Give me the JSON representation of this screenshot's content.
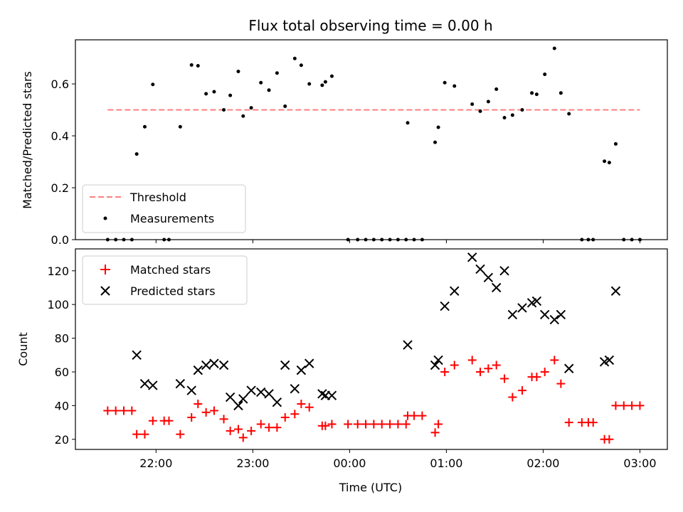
{
  "chart_data": [
    {
      "type": "scatter",
      "title": "Flux total observing time = 0.00 h",
      "xlabel": "",
      "ylabel": "Matched/Predicted stars",
      "ylim": [
        0,
        0.77
      ],
      "yticks": [
        "0.0",
        "0.2",
        "0.4",
        "0.6"
      ],
      "threshold": {
        "name": "Threshold",
        "value": 0.5,
        "x_start": "21:30",
        "x_end": "03:00",
        "color": "#ff7f7f"
      },
      "legend": {
        "placement": "lower-left",
        "entries": [
          "Threshold",
          "Measurements"
        ]
      },
      "series": [
        {
          "name": "Measurements",
          "marker": "dot",
          "color": "#000000",
          "points": [
            [
              "21:30",
              0
            ],
            [
              "21:35",
              0
            ],
            [
              "21:40",
              0
            ],
            [
              "21:45",
              0
            ],
            [
              "21:48",
              0.33
            ],
            [
              "21:53",
              0.435
            ],
            [
              "21:58",
              0.598
            ],
            [
              "22:05",
              0
            ],
            [
              "22:08",
              0
            ],
            [
              "22:15",
              0.435
            ],
            [
              "22:22",
              0.673
            ],
            [
              "22:26",
              0.67
            ],
            [
              "22:31",
              0.562
            ],
            [
              "22:36",
              0.57
            ],
            [
              "22:42",
              0.5
            ],
            [
              "22:46",
              0.556
            ],
            [
              "22:51",
              0.648
            ],
            [
              "22:54",
              0.476
            ],
            [
              "22:59",
              0.508
            ],
            [
              "23:05",
              0.605
            ],
            [
              "23:10",
              0.576
            ],
            [
              "23:15",
              0.642
            ],
            [
              "23:20",
              0.514
            ],
            [
              "23:26",
              0.698
            ],
            [
              "23:30",
              0.672
            ],
            [
              "23:35",
              0.6
            ],
            [
              "23:43",
              0.595
            ],
            [
              "23:45",
              0.608
            ],
            [
              "23:49",
              0.63
            ],
            [
              "23:59",
              0
            ],
            [
              "24:05",
              0
            ],
            [
              "24:10",
              0
            ],
            [
              "24:15",
              0
            ],
            [
              "24:20",
              0
            ],
            [
              "24:25",
              0
            ],
            [
              "24:30",
              0
            ],
            [
              "24:35",
              0
            ],
            [
              "24:36",
              0.45
            ],
            [
              "24:40",
              0
            ],
            [
              "24:45",
              0
            ],
            [
              "24:53",
              0.375
            ],
            [
              "24:55",
              0.433
            ],
            [
              "24:59",
              0.605
            ],
            [
              "25:05",
              0.592
            ],
            [
              "25:16",
              0.522
            ],
            [
              "25:21",
              0.495
            ],
            [
              "25:26",
              0.532
            ],
            [
              "25:31",
              0.58
            ],
            [
              "25:36",
              0.47
            ],
            [
              "25:41",
              0.48
            ],
            [
              "25:47",
              0.5
            ],
            [
              "25:53",
              0.565
            ],
            [
              "25:56",
              0.56
            ],
            [
              "26:01",
              0.637
            ],
            [
              "26:07",
              0.737
            ],
            [
              "26:11",
              0.565
            ],
            [
              "26:16",
              0.485
            ],
            [
              "26:24",
              0
            ],
            [
              "26:28",
              0
            ],
            [
              "26:31",
              0
            ],
            [
              "26:38",
              0.302
            ],
            [
              "26:41",
              0.297
            ],
            [
              "26:45",
              0.369
            ],
            [
              "26:50",
              0
            ],
            [
              "26:55",
              0
            ],
            [
              "27:00",
              0
            ]
          ]
        }
      ]
    },
    {
      "type": "scatter",
      "title": "",
      "xlabel": "Time (UTC)",
      "ylabel": "Count",
      "ylim": [
        14,
        133
      ],
      "yticks": [
        "20",
        "40",
        "60",
        "80",
        "100",
        "120"
      ],
      "xticks": [
        "22:00",
        "23:00",
        "00:00",
        "01:00",
        "02:00",
        "03:00"
      ],
      "xlim": [
        "21:10",
        "03:17"
      ],
      "legend": {
        "placement": "top-left",
        "entries": [
          "Matched stars",
          "Predicted stars"
        ]
      },
      "series": [
        {
          "name": "Matched stars",
          "marker": "plus",
          "color": "#ff0000",
          "points": [
            [
              "21:30",
              37
            ],
            [
              "21:35",
              37
            ],
            [
              "21:40",
              37
            ],
            [
              "21:45",
              37
            ],
            [
              "21:48",
              23
            ],
            [
              "21:53",
              23
            ],
            [
              "21:58",
              31
            ],
            [
              "22:05",
              31
            ],
            [
              "22:08",
              31
            ],
            [
              "22:15",
              23
            ],
            [
              "22:22",
              33
            ],
            [
              "22:26",
              41
            ],
            [
              "22:31",
              36
            ],
            [
              "22:36",
              37
            ],
            [
              "22:42",
              32
            ],
            [
              "22:46",
              25
            ],
            [
              "22:51",
              26
            ],
            [
              "22:54",
              21
            ],
            [
              "22:59",
              25
            ],
            [
              "23:05",
              29
            ],
            [
              "23:10",
              27
            ],
            [
              "23:15",
              27
            ],
            [
              "23:20",
              33
            ],
            [
              "23:26",
              35
            ],
            [
              "23:30",
              41
            ],
            [
              "23:35",
              39
            ],
            [
              "23:43",
              28
            ],
            [
              "23:45",
              28
            ],
            [
              "23:49",
              29
            ],
            [
              "23:59",
              29
            ],
            [
              "24:05",
              29
            ],
            [
              "24:10",
              29
            ],
            [
              "24:15",
              29
            ],
            [
              "24:20",
              29
            ],
            [
              "24:25",
              29
            ],
            [
              "24:30",
              29
            ],
            [
              "24:35",
              29
            ],
            [
              "24:36",
              34
            ],
            [
              "24:40",
              34
            ],
            [
              "24:45",
              34
            ],
            [
              "24:53",
              24
            ],
            [
              "24:55",
              29
            ],
            [
              "24:59",
              60
            ],
            [
              "25:05",
              64
            ],
            [
              "25:16",
              67
            ],
            [
              "25:21",
              60
            ],
            [
              "25:26",
              62
            ],
            [
              "25:31",
              64
            ],
            [
              "25:36",
              56
            ],
            [
              "25:41",
              45
            ],
            [
              "25:47",
              49
            ],
            [
              "25:53",
              57
            ],
            [
              "25:56",
              57
            ],
            [
              "26:01",
              60
            ],
            [
              "26:07",
              67
            ],
            [
              "26:11",
              53
            ],
            [
              "26:16",
              30
            ],
            [
              "26:24",
              30
            ],
            [
              "26:28",
              30
            ],
            [
              "26:31",
              30
            ],
            [
              "26:38",
              20
            ],
            [
              "26:41",
              20
            ],
            [
              "26:45",
              40
            ],
            [
              "26:50",
              40
            ],
            [
              "26:55",
              40
            ],
            [
              "27:00",
              40
            ]
          ]
        },
        {
          "name": "Predicted stars",
          "marker": "x",
          "color": "#000000",
          "points": [
            [
              "21:48",
              70
            ],
            [
              "21:53",
              53
            ],
            [
              "21:58",
              52
            ],
            [
              "22:15",
              53
            ],
            [
              "22:22",
              49
            ],
            [
              "22:26",
              61
            ],
            [
              "22:31",
              64
            ],
            [
              "22:36",
              65
            ],
            [
              "22:42",
              64
            ],
            [
              "22:46",
              45
            ],
            [
              "22:51",
              40
            ],
            [
              "22:54",
              44
            ],
            [
              "22:59",
              49
            ],
            [
              "23:05",
              48
            ],
            [
              "23:10",
              47
            ],
            [
              "23:15",
              42
            ],
            [
              "23:20",
              64
            ],
            [
              "23:26",
              50
            ],
            [
              "23:30",
              61
            ],
            [
              "23:35",
              65
            ],
            [
              "23:43",
              47
            ],
            [
              "23:45",
              46
            ],
            [
              "23:49",
              46
            ],
            [
              "24:36",
              76
            ],
            [
              "24:53",
              64
            ],
            [
              "24:55",
              67
            ],
            [
              "24:59",
              99
            ],
            [
              "25:05",
              108
            ],
            [
              "25:16",
              128
            ],
            [
              "25:21",
              121
            ],
            [
              "25:26",
              116
            ],
            [
              "25:31",
              110
            ],
            [
              "25:36",
              120
            ],
            [
              "25:41",
              94
            ],
            [
              "25:47",
              98
            ],
            [
              "25:53",
              101
            ],
            [
              "25:56",
              102
            ],
            [
              "26:01",
              94
            ],
            [
              "26:07",
              91
            ],
            [
              "26:11",
              94
            ],
            [
              "26:16",
              62
            ],
            [
              "26:38",
              66
            ],
            [
              "26:41",
              67
            ],
            [
              "26:45",
              108
            ]
          ]
        }
      ]
    }
  ]
}
